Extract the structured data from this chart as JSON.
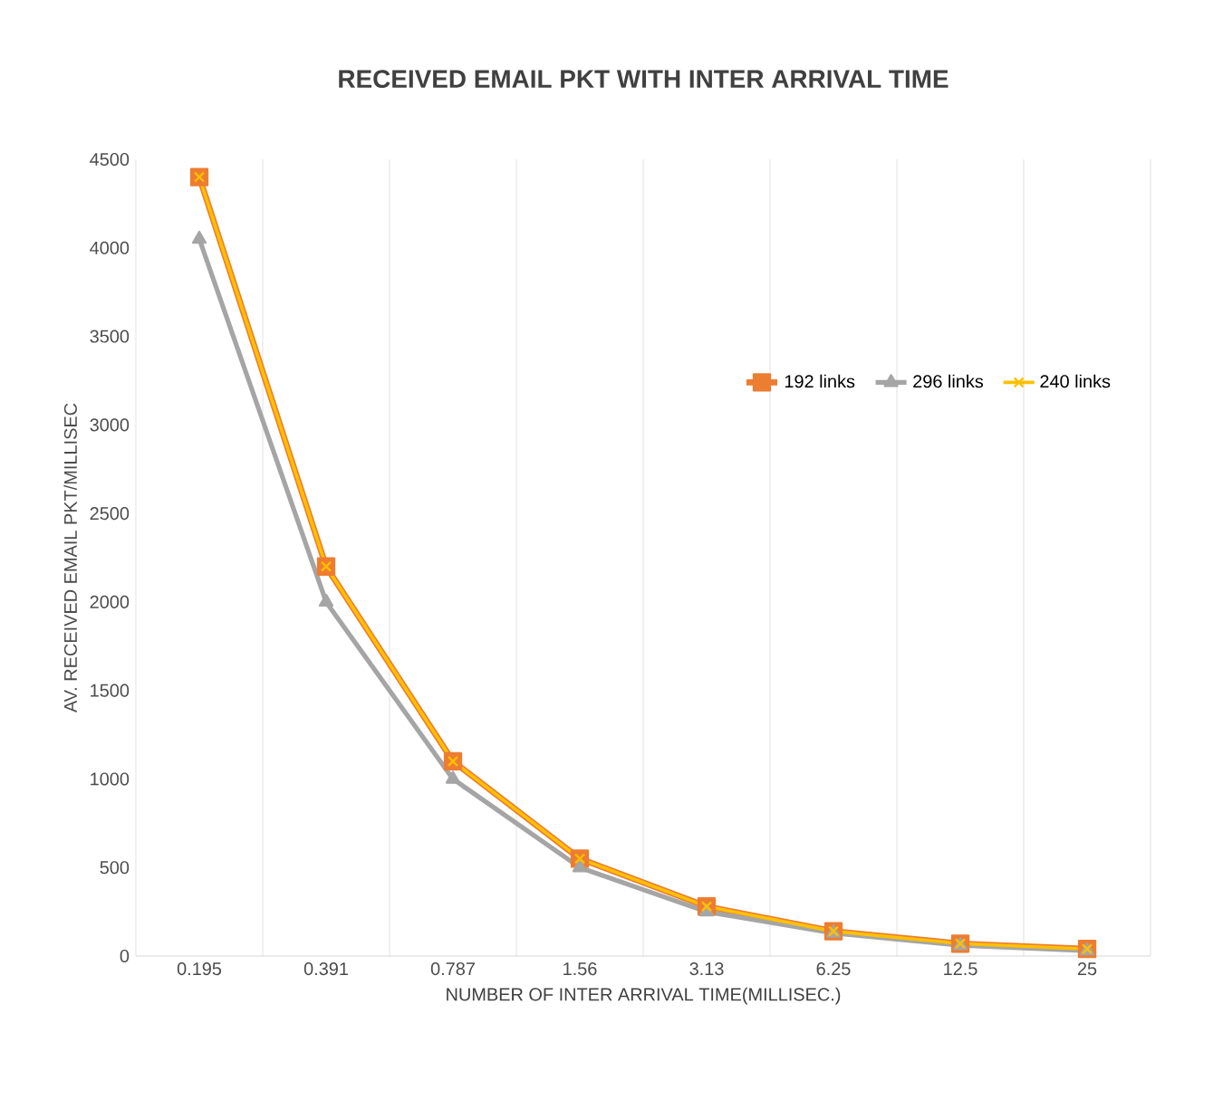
{
  "chart_data": {
    "type": "line",
    "title": "RECEIVED EMAIL PKT WITH INTER ARRIVAL TIME",
    "xlabel": "NUMBER OF INTER ARRIVAL TIME(MILLISEC.)",
    "ylabel": "AV. RECEIVED EMAIL PKT/MILLISEC",
    "categories": [
      "0.195",
      "0.391",
      "0.787",
      "1.56",
      "3.13",
      "6.25",
      "12.5",
      "25"
    ],
    "series": [
      {
        "name": "192 links",
        "color": "#ed7d31",
        "marker": "square",
        "values": [
          4400,
          2200,
          1100,
          550,
          280,
          140,
          70,
          40
        ]
      },
      {
        "name": "296 links",
        "color": "#a5a5a5",
        "marker": "triangle",
        "values": [
          4050,
          2000,
          1000,
          500,
          250,
          130,
          60,
          30
        ]
      },
      {
        "name": "240 links",
        "color": "#ffc000",
        "marker": "cross",
        "values": [
          4400,
          2200,
          1100,
          550,
          280,
          140,
          70,
          40
        ]
      }
    ],
    "ylim": [
      0,
      4500
    ],
    "yticks": [
      0,
      500,
      1000,
      1500,
      2000,
      2500,
      3000,
      3500,
      4000,
      4500
    ],
    "grid": "x",
    "legend": "right"
  }
}
